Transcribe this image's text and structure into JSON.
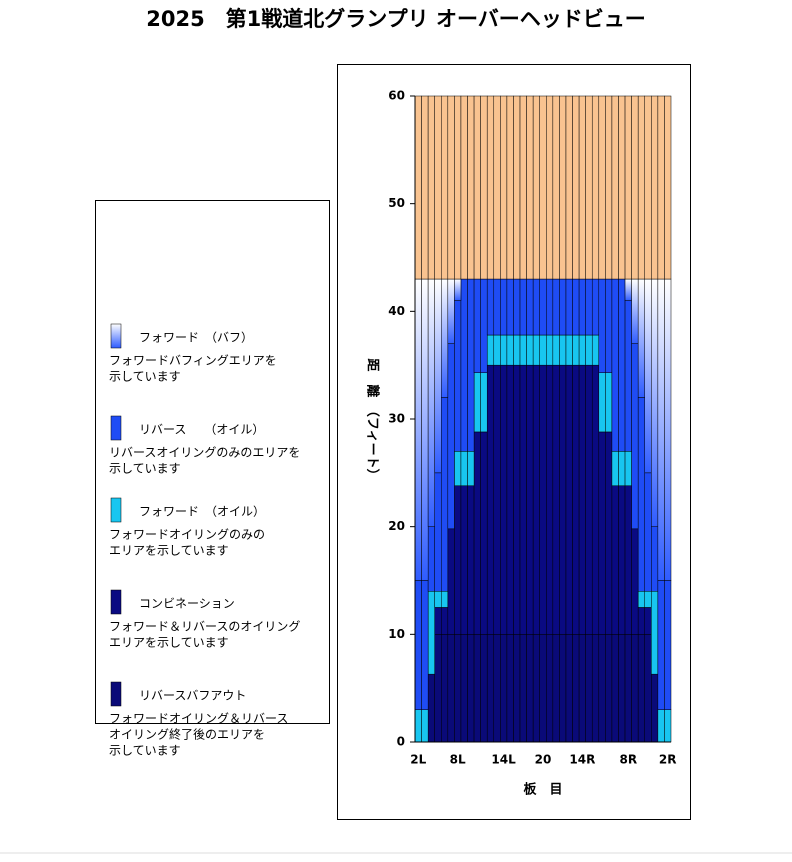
{
  "chart_data": {
    "type": "bar",
    "stacked": true,
    "title": "2025　第1戦道北グランプリ オーバーヘッドビュー",
    "x_label": "板　目",
    "y_label": "距　離　（フィート）",
    "categories": [
      "2L",
      null,
      null,
      null,
      null,
      null,
      "8L",
      null,
      null,
      null,
      null,
      null,
      null,
      "14L",
      null,
      null,
      null,
      null,
      null,
      "20",
      null,
      null,
      null,
      null,
      null,
      "14R",
      null,
      null,
      null,
      null,
      null,
      null,
      "8R",
      null,
      null,
      null,
      null,
      null,
      "2R"
    ],
    "ylim": [
      0,
      60
    ],
    "yticks": [
      0,
      10,
      20,
      30,
      40,
      50,
      60
    ],
    "series": [
      {
        "color": "#f9c390",
        "values": [
          17,
          17,
          17,
          17,
          17,
          17,
          17,
          17,
          17,
          17,
          17,
          17,
          17,
          17,
          17,
          17,
          17,
          17,
          17,
          17,
          17,
          17,
          17,
          17,
          17,
          17,
          17,
          17,
          17,
          17,
          17,
          17,
          17,
          17,
          17,
          17,
          17,
          17,
          17
        ]
      },
      {
        "name": "フォワード　（バフ）",
        "color": "#2f5cff",
        "gradient": true,
        "description": [
          "フォワードバフィングエリアを",
          "示しています"
        ],
        "values": [
          28,
          28,
          23,
          18,
          11,
          6,
          2,
          0,
          0,
          0,
          0,
          0,
          0,
          0,
          0,
          0,
          0,
          0,
          0,
          0,
          0,
          0,
          0,
          0,
          0,
          0,
          0,
          0,
          0,
          0,
          0,
          0,
          2,
          6,
          11,
          18,
          23,
          28,
          28
        ]
      },
      {
        "name": "リバース　　（オイル）",
        "color": "#1f4cf5",
        "description": [
          "リバースオイリングのみのエリアを",
          "示しています"
        ],
        "values": [
          12,
          12,
          6,
          11,
          18,
          17.2,
          14,
          16,
          16,
          8.7,
          8.7,
          5.2,
          5.2,
          5.2,
          5.2,
          5.2,
          5.2,
          5.2,
          5.2,
          5.2,
          5.2,
          5.2,
          5.2,
          5.2,
          5.2,
          5.2,
          5.2,
          5.2,
          8.7,
          8.7,
          16,
          16,
          14,
          17.2,
          18,
          11,
          6,
          12,
          12
        ]
      },
      {
        "name": "フォワード　（オイル）",
        "color": "#18c6f0",
        "description": [
          "フォワードオイリングのみの",
          "エリアを示しています"
        ],
        "values": [
          3,
          3,
          7.7,
          1.5,
          1.5,
          0,
          3.2,
          3.2,
          3.2,
          5.5,
          5.5,
          2.8,
          2.8,
          2.8,
          2.8,
          2.8,
          2.8,
          2.8,
          2.8,
          2.8,
          2.8,
          2.8,
          2.8,
          2.8,
          2.8,
          2.8,
          2.8,
          2.8,
          5.5,
          5.5,
          3.2,
          3.2,
          3.2,
          0,
          1.5,
          1.5,
          7.7,
          3,
          3
        ]
      },
      {
        "name": "コンビネーション",
        "color": "#0a0a82",
        "description": [
          "フォワード＆リバースのオイリング",
          "エリアを示しています"
        ],
        "values": [
          0,
          0,
          0,
          2.5,
          2.5,
          9.8,
          13.8,
          13.8,
          13.8,
          18.8,
          18.8,
          25,
          25,
          25,
          25,
          25,
          25,
          25,
          25,
          25,
          25,
          25,
          25,
          25,
          25,
          25,
          25,
          25,
          18.8,
          18.8,
          13.8,
          13.8,
          13.8,
          9.8,
          2.5,
          2.5,
          0,
          0,
          0
        ]
      },
      {
        "name": "リバースバフアウト",
        "color": "#0a0a78",
        "description": [
          "フォワードオイリング＆リバース",
          "オイリング終了後のエリアを",
          "示しています"
        ],
        "values": [
          0,
          0,
          6.3,
          10,
          10,
          10,
          10,
          10,
          10,
          10,
          10,
          10,
          10,
          10,
          10,
          10,
          10,
          10,
          10,
          10,
          10,
          10,
          10,
          10,
          10,
          10,
          10,
          10,
          10,
          10,
          10,
          10,
          10,
          10,
          10,
          10,
          6.3,
          0,
          0
        ]
      }
    ]
  }
}
